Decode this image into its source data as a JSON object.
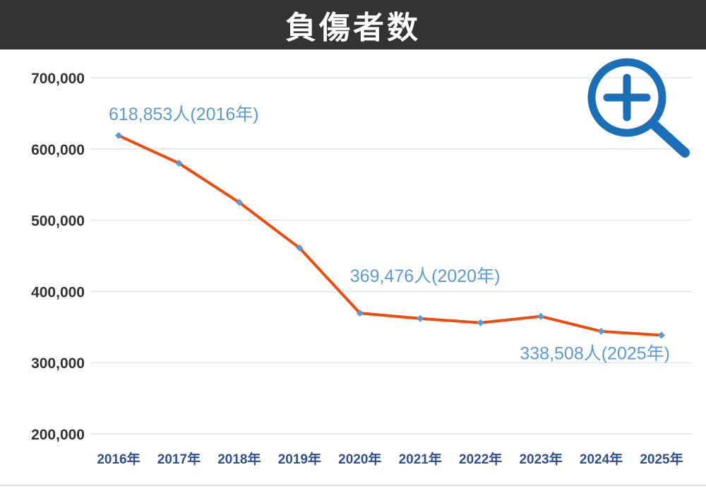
{
  "header": {
    "title": "負傷者数"
  },
  "zoom_icon": "zoom-in-magnifier-icon",
  "colors": {
    "header_bg": "#333333",
    "line": "#ee4c0f",
    "marker": "#5b9bd5",
    "annotation": "#5b9bd5",
    "y_tick": "#333333",
    "x_tick": "#2f4f8f",
    "grid": "#d9d9d9",
    "zoom_icon": "#1a6fb8"
  },
  "chart_data": {
    "type": "line",
    "title": "負傷者数",
    "categories": [
      "2016年",
      "2017年",
      "2018年",
      "2019年",
      "2020年",
      "2021年",
      "2022年",
      "2023年",
      "2024年",
      "2025年"
    ],
    "series": [
      {
        "values": [
          618853,
          580000,
          525000,
          461000,
          369476,
          362000,
          356000,
          365000,
          344000,
          338508
        ]
      }
    ],
    "ylim": [
      200000,
      700000
    ],
    "y_ticks": [
      700000,
      600000,
      500000,
      400000,
      300000,
      200000
    ],
    "y_tick_labels": [
      "700,000",
      "600,000",
      "500,000",
      "400,000",
      "300,000",
      "200,000"
    ],
    "grid": true,
    "annotations": [
      {
        "index": 0,
        "text": "618,853人(2016年)"
      },
      {
        "index": 4,
        "text": "369,476人(2020年)"
      },
      {
        "index": 9,
        "text": "338,508人(2025年)"
      }
    ]
  }
}
